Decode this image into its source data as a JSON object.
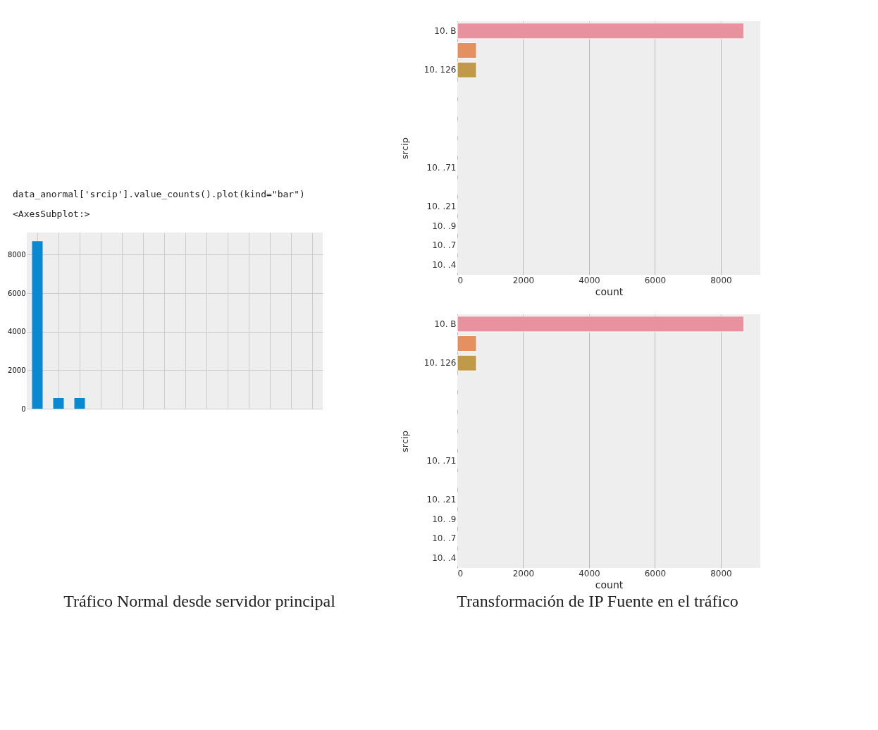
{
  "chart_data": [
    {
      "type": "bar",
      "categories": [
        null,
        null,
        null,
        null,
        null,
        null,
        null,
        null,
        null,
        null,
        null,
        null,
        null,
        null
      ],
      "values": [
        8700,
        550,
        550,
        0,
        0,
        0,
        0,
        0,
        0,
        0,
        0,
        0,
        0,
        0
      ],
      "color": "#0a88d0",
      "ylim": [
        0,
        9150
      ],
      "yticks": [
        0,
        2000,
        4000,
        6000,
        8000
      ],
      "grid": true,
      "annotations": [
        "data_anormal['srcip'].value_counts().plot(kind=\"bar\")",
        "<AxesSubplot:>",
        "Tráfico Normal desde servidor principal"
      ]
    },
    {
      "type": "bar",
      "orientation": "horizontal",
      "ylabel": "srcip",
      "xlabel": "count",
      "categories": [
        "10.        B",
        null,
        "10.     126",
        null,
        null,
        null,
        null,
        "10.      .71",
        null,
        "10.     .21",
        "10.      .9",
        "10.      .7",
        "10.      .4"
      ],
      "values": [
        8700,
        580,
        580,
        0,
        0,
        0,
        0,
        0,
        0,
        0,
        0,
        0,
        0
      ],
      "colors": [
        "#e8919f",
        "#e59060",
        "#c09a48",
        "#a9a847",
        "#7fb048",
        "#4fb070",
        "#4cae95",
        "#4eabad",
        "#52a8c6",
        "#7aa0e0",
        "#a895e6",
        "#d487dd",
        "#e585bd"
      ],
      "xlim": [
        0,
        9200
      ],
      "xticks": [
        0,
        2000,
        4000,
        6000,
        8000
      ],
      "grid": "x"
    },
    {
      "type": "bar",
      "orientation": "horizontal",
      "ylabel": "srcip",
      "xlabel": "count",
      "categories": [
        "10.        B",
        null,
        "10.     126",
        null,
        null,
        null,
        null,
        "10.      .71",
        null,
        "10.     .21",
        "10.      .9",
        "10.      .7",
        "10.      .4"
      ],
      "values": [
        8700,
        580,
        580,
        0,
        0,
        0,
        0,
        0,
        0,
        0,
        0,
        0,
        0
      ],
      "colors": [
        "#e8919f",
        "#e59060",
        "#c09a48",
        "#a9a847",
        "#7fb048",
        "#4fb070",
        "#4cae95",
        "#4eabad",
        "#52a8c6",
        "#7aa0e0",
        "#a895e6",
        "#d487dd",
        "#e585bd"
      ],
      "xlim": [
        0,
        9200
      ],
      "xticks": [
        0,
        2000,
        4000,
        6000,
        8000
      ],
      "grid": "x",
      "annotations": [
        "Transformación de IP Fuente en el tráfico"
      ]
    }
  ]
}
